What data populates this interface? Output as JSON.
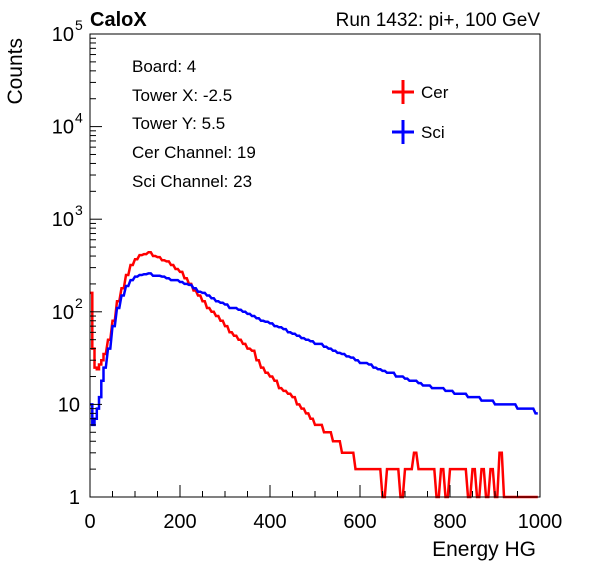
{
  "header": {
    "left_label": "CaloX",
    "right_label": "Run 1432: pi+, 100 GeV"
  },
  "info": {
    "lines": [
      "Board: 4",
      "Tower X: -2.5",
      "Tower Y: 5.5",
      "Cer Channel: 19",
      "Sci Channel: 23"
    ]
  },
  "colors": {
    "cer": "#ff0000",
    "sci": "#0000ff",
    "axis": "#000000"
  },
  "chart_data": {
    "type": "line",
    "xlabel": "Energy HG",
    "ylabel": "Counts",
    "xlim": [
      0,
      1000
    ],
    "ylim": [
      1,
      100000
    ],
    "yscale": "log",
    "grid": false,
    "legend_position": "top-right",
    "x_ticks": [
      "0",
      "200",
      "400",
      "600",
      "800",
      "1000"
    ],
    "y_ticks": [
      {
        "mantissa": "1",
        "exp": ""
      },
      {
        "mantissa": "10",
        "exp": ""
      },
      {
        "mantissa": "10",
        "exp": "2"
      },
      {
        "mantissa": "10",
        "exp": "3"
      },
      {
        "mantissa": "10",
        "exp": "4"
      },
      {
        "mantissa": "10",
        "exp": "5"
      }
    ],
    "series": [
      {
        "name": "Cer",
        "x": [
          0,
          5,
          10,
          15,
          20,
          25,
          30,
          40,
          50,
          60,
          70,
          80,
          90,
          100,
          110,
          120,
          130,
          140,
          150,
          160,
          170,
          180,
          190,
          200,
          210,
          220,
          230,
          240,
          250,
          260,
          270,
          280,
          290,
          300,
          310,
          320,
          330,
          340,
          350,
          360,
          370,
          380,
          390,
          400,
          410,
          420,
          430,
          440,
          450,
          460,
          470,
          480,
          490,
          500,
          510,
          520,
          530,
          540,
          550,
          560,
          570,
          580,
          590,
          600,
          610,
          620,
          630,
          640,
          650,
          660,
          670,
          680,
          690,
          700,
          710,
          720,
          730,
          740,
          750,
          760,
          770,
          780,
          790,
          800,
          810,
          820,
          830,
          840,
          850,
          860,
          870,
          880,
          890,
          900,
          910,
          920,
          930,
          940,
          950,
          960,
          970,
          980,
          990
        ],
        "y": [
          160,
          40,
          25,
          24,
          27,
          30,
          35,
          50,
          80,
          130,
          180,
          250,
          320,
          370,
          410,
          420,
          440,
          400,
          390,
          360,
          350,
          320,
          290,
          270,
          230,
          200,
          170,
          150,
          130,
          110,
          100,
          90,
          80,
          70,
          60,
          55,
          50,
          45,
          40,
          38,
          30,
          25,
          22,
          20,
          18,
          15,
          14,
          13,
          12,
          10,
          9,
          8,
          7,
          6,
          6,
          5,
          5,
          4,
          4,
          3,
          3,
          3,
          2,
          2,
          2,
          2,
          2,
          2,
          1,
          2,
          2,
          2,
          1,
          2,
          2,
          3,
          2,
          2,
          2,
          2,
          1,
          2,
          1,
          2,
          2,
          2,
          2,
          1,
          2,
          1,
          2,
          1,
          2,
          1,
          3,
          1,
          1,
          1,
          1,
          1,
          1,
          1,
          1
        ]
      },
      {
        "name": "Sci",
        "x": [
          0,
          5,
          10,
          15,
          20,
          25,
          30,
          40,
          50,
          60,
          70,
          80,
          90,
          100,
          110,
          120,
          130,
          140,
          150,
          160,
          170,
          180,
          190,
          200,
          210,
          220,
          230,
          240,
          250,
          260,
          270,
          280,
          290,
          300,
          310,
          320,
          330,
          340,
          350,
          360,
          370,
          380,
          390,
          400,
          410,
          420,
          430,
          440,
          450,
          460,
          470,
          480,
          490,
          500,
          510,
          520,
          530,
          540,
          550,
          560,
          570,
          580,
          590,
          600,
          610,
          620,
          630,
          640,
          650,
          660,
          670,
          680,
          690,
          700,
          710,
          720,
          730,
          740,
          750,
          760,
          770,
          780,
          790,
          800,
          810,
          820,
          830,
          840,
          850,
          860,
          870,
          880,
          890,
          900,
          910,
          920,
          930,
          940,
          950,
          960,
          970,
          980,
          990
        ],
        "y": [
          10,
          6,
          7,
          9,
          12,
          18,
          25,
          40,
          70,
          110,
          150,
          190,
          220,
          240,
          250,
          255,
          260,
          245,
          245,
          240,
          230,
          220,
          220,
          210,
          200,
          195,
          180,
          165,
          160,
          150,
          140,
          130,
          125,
          120,
          110,
          110,
          105,
          100,
          95,
          90,
          85,
          80,
          78,
          75,
          70,
          68,
          65,
          60,
          58,
          55,
          52,
          50,
          48,
          45,
          45,
          42,
          40,
          38,
          36,
          35,
          33,
          32,
          30,
          28,
          28,
          27,
          25,
          24,
          23,
          22,
          22,
          20,
          20,
          19,
          18,
          18,
          17,
          16,
          16,
          15,
          15,
          15,
          14,
          14,
          13,
          13,
          13,
          12,
          12,
          12,
          11,
          11,
          11,
          10,
          10,
          10,
          10,
          10,
          9,
          9,
          9,
          9,
          8
        ]
      }
    ]
  }
}
